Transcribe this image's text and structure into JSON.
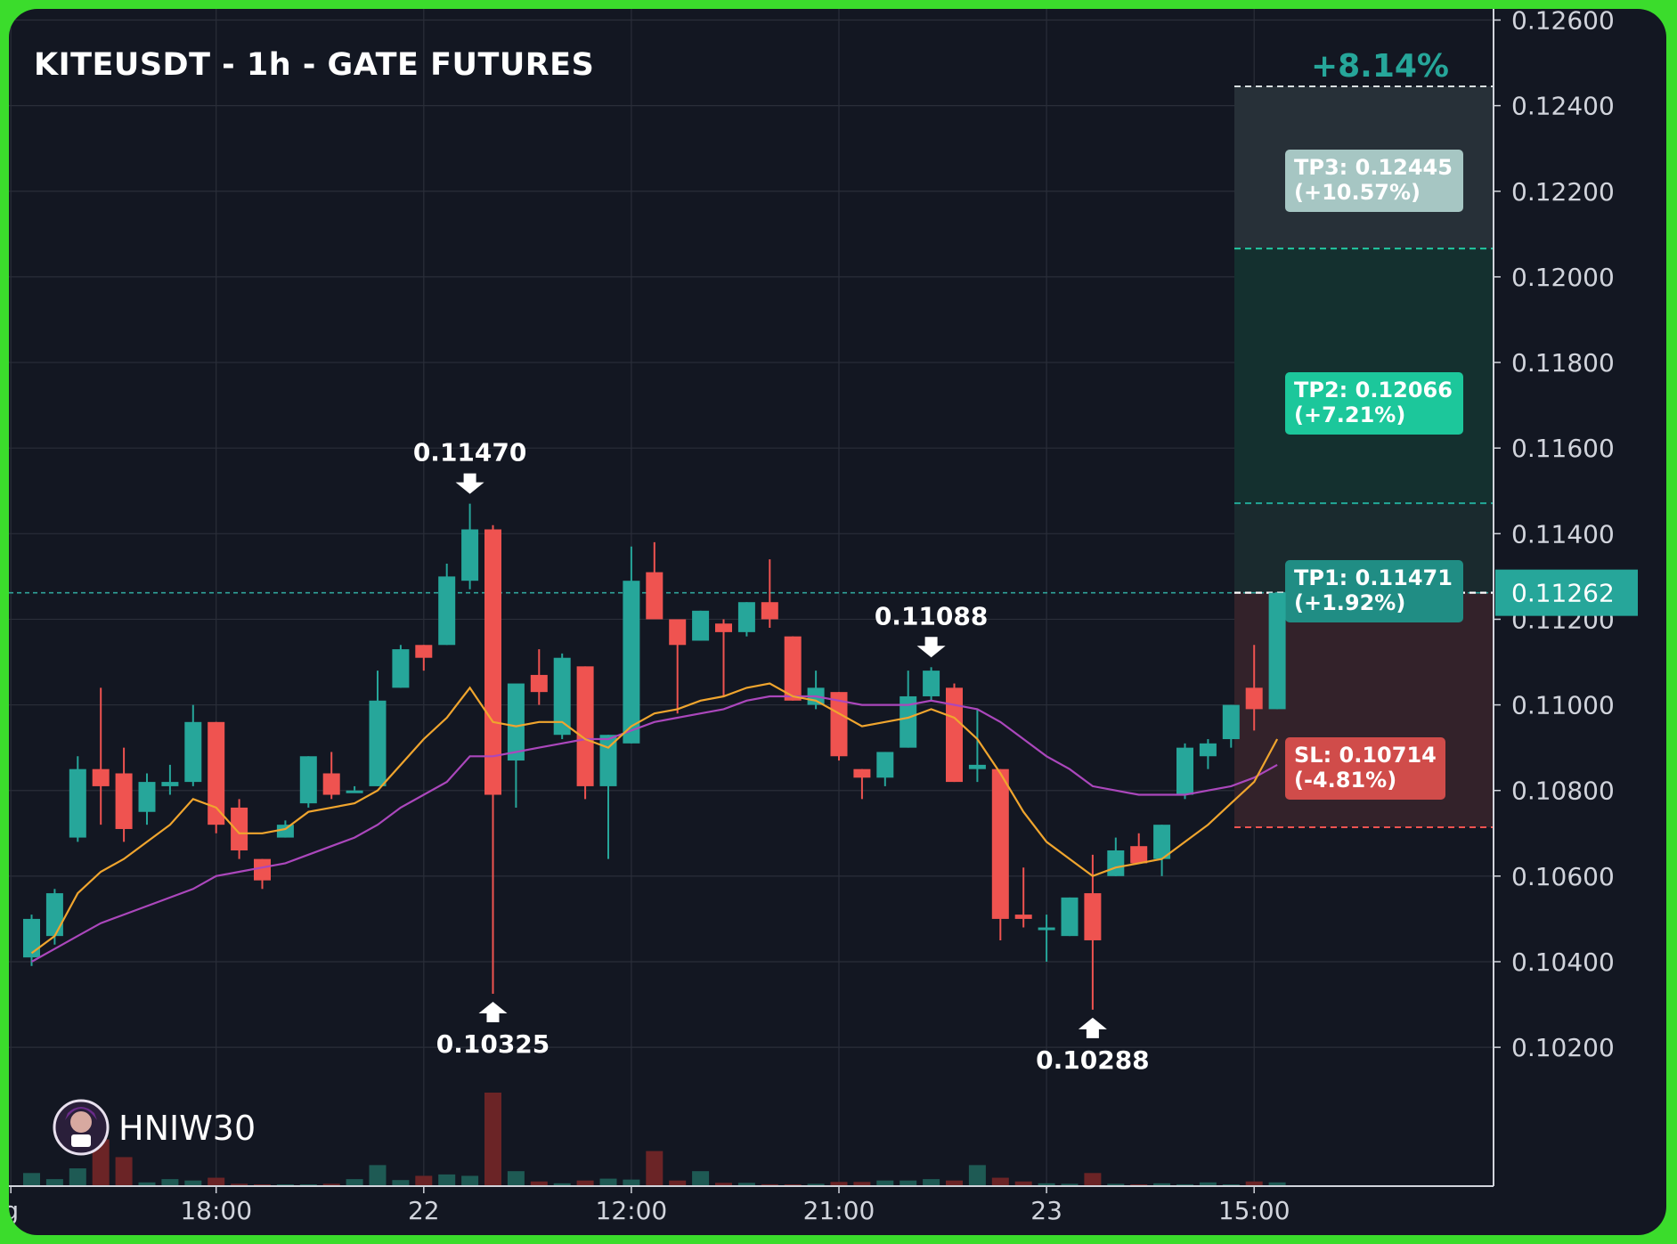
{
  "title": "KITEUSDT - 1h - GATE FUTURES",
  "brand": {
    "name": "HNIW30",
    "avatar_icon": "avatar-icon"
  },
  "colors": {
    "up": "#26a69a",
    "down": "#ef5350",
    "ema_fast": "#f0a52e",
    "ema_slow": "#ab47bc",
    "background": "#131722",
    "border": "#3bdc2c"
  },
  "chart_data": {
    "type": "candlestick",
    "title": "KITEUSDT - 1h - GATE FUTURES",
    "ylim": [
      0.1008,
      0.126
    ],
    "yticks": [
      "0.10200",
      "0.10400",
      "0.10600",
      "0.10800",
      "0.11000",
      "0.11200",
      "0.11400",
      "0.11600",
      "0.11800",
      "0.12000",
      "0.12200",
      "0.12400",
      "0.12600"
    ],
    "xticks": [
      {
        "index": -0.9,
        "label": "g"
      },
      {
        "index": 8,
        "label": "18:00"
      },
      {
        "index": 17,
        "label": "22"
      },
      {
        "index": 26,
        "label": "12:00"
      },
      {
        "index": 35,
        "label": "21:00"
      },
      {
        "index": 44,
        "label": "23"
      },
      {
        "index": 53,
        "label": "15:00"
      }
    ],
    "grid": true,
    "candles": [
      {
        "o": 0.1041,
        "h": 0.1051,
        "l": 0.1039,
        "c": 0.105,
        "v": 28
      },
      {
        "o": 0.1046,
        "h": 0.1057,
        "l": 0.1044,
        "c": 0.1056,
        "v": 15
      },
      {
        "o": 0.1069,
        "h": 0.1088,
        "l": 0.1068,
        "c": 0.1085,
        "v": 38
      },
      {
        "o": 0.1085,
        "h": 0.1104,
        "l": 0.1072,
        "c": 0.1081,
        "v": 100
      },
      {
        "o": 0.1084,
        "h": 0.109,
        "l": 0.1068,
        "c": 0.1071,
        "v": 62
      },
      {
        "o": 0.1075,
        "h": 0.1084,
        "l": 0.1072,
        "c": 0.1082,
        "v": 8
      },
      {
        "o": 0.1081,
        "h": 0.1086,
        "l": 0.1079,
        "c": 0.1082,
        "v": 15
      },
      {
        "o": 0.1082,
        "h": 0.11,
        "l": 0.1081,
        "c": 0.1096,
        "v": 12
      },
      {
        "o": 0.1096,
        "h": 0.1096,
        "l": 0.107,
        "c": 0.1072,
        "v": 18
      },
      {
        "o": 0.1076,
        "h": 0.1078,
        "l": 0.1064,
        "c": 0.1066,
        "v": 5
      },
      {
        "o": 0.1064,
        "h": 0.1064,
        "l": 0.1057,
        "c": 0.1059,
        "v": 3
      },
      {
        "o": 0.1069,
        "h": 0.1073,
        "l": 0.1069,
        "c": 0.1072,
        "v": 2
      },
      {
        "o": 0.1077,
        "h": 0.1088,
        "l": 0.1076,
        "c": 0.1088,
        "v": 3
      },
      {
        "o": 0.1084,
        "h": 0.1089,
        "l": 0.1078,
        "c": 0.1079,
        "v": 5
      },
      {
        "o": 0.108,
        "h": 0.1081,
        "l": 0.108,
        "c": 0.108,
        "v": 15
      },
      {
        "o": 0.1081,
        "h": 0.1108,
        "l": 0.1081,
        "c": 0.1101,
        "v": 45
      },
      {
        "o": 0.1104,
        "h": 0.1114,
        "l": 0.1104,
        "c": 0.1113,
        "v": 13
      },
      {
        "o": 0.1114,
        "h": 0.1114,
        "l": 0.1108,
        "c": 0.1111,
        "v": 22
      },
      {
        "o": 0.1114,
        "h": 0.1133,
        "l": 0.1114,
        "c": 0.113,
        "v": 25
      },
      {
        "o": 0.1129,
        "h": 0.1147,
        "l": 0.1127,
        "c": 0.1141,
        "v": 22
      },
      {
        "o": 0.1141,
        "h": 0.1142,
        "l": 0.10325,
        "c": 0.1079,
        "v": 200
      },
      {
        "o": 0.1087,
        "h": 0.1103,
        "l": 0.1076,
        "c": 0.1105,
        "v": 32
      },
      {
        "o": 0.1107,
        "h": 0.1113,
        "l": 0.11,
        "c": 0.1103,
        "v": 10
      },
      {
        "o": 0.1093,
        "h": 0.1112,
        "l": 0.1092,
        "c": 0.1111,
        "v": 6
      },
      {
        "o": 0.1109,
        "h": 0.1109,
        "l": 0.1078,
        "c": 0.1081,
        "v": 12
      },
      {
        "o": 0.1081,
        "h": 0.1093,
        "l": 0.1064,
        "c": 0.1093,
        "v": 16
      },
      {
        "o": 0.1091,
        "h": 0.1137,
        "l": 0.1091,
        "c": 0.1129,
        "v": 14
      },
      {
        "o": 0.1131,
        "h": 0.1138,
        "l": 0.1121,
        "c": 0.112,
        "v": 75
      },
      {
        "o": 0.112,
        "h": 0.112,
        "l": 0.1098,
        "c": 0.1114,
        "v": 12
      },
      {
        "o": 0.1115,
        "h": 0.1122,
        "l": 0.1115,
        "c": 0.1122,
        "v": 32
      },
      {
        "o": 0.1119,
        "h": 0.112,
        "l": 0.1102,
        "c": 0.1117,
        "v": 7
      },
      {
        "o": 0.1117,
        "h": 0.1124,
        "l": 0.1116,
        "c": 0.1124,
        "v": 7
      },
      {
        "o": 0.1124,
        "h": 0.1134,
        "l": 0.1118,
        "c": 0.112,
        "v": 4
      },
      {
        "o": 0.1116,
        "h": 0.1116,
        "l": 0.1101,
        "c": 0.1101,
        "v": 3
      },
      {
        "o": 0.11,
        "h": 0.1108,
        "l": 0.1099,
        "c": 0.1104,
        "v": 5
      },
      {
        "o": 0.1103,
        "h": 0.1103,
        "l": 0.1087,
        "c": 0.1088,
        "v": 9
      },
      {
        "o": 0.1085,
        "h": 0.1085,
        "l": 0.1078,
        "c": 0.1083,
        "v": 9
      },
      {
        "o": 0.1083,
        "h": 0.1089,
        "l": 0.1081,
        "c": 0.1089,
        "v": 12
      },
      {
        "o": 0.109,
        "h": 0.1108,
        "l": 0.109,
        "c": 0.1102,
        "v": 12
      },
      {
        "o": 0.1102,
        "h": 0.11088,
        "l": 0.1101,
        "c": 0.1108,
        "v": 15
      },
      {
        "o": 0.1104,
        "h": 0.1105,
        "l": 0.1082,
        "c": 0.1082,
        "v": 12
      },
      {
        "o": 0.1085,
        "h": 0.1099,
        "l": 0.1082,
        "c": 0.1086,
        "v": 45
      },
      {
        "o": 0.1085,
        "h": 0.1085,
        "l": 0.1045,
        "c": 0.105,
        "v": 18
      },
      {
        "o": 0.1051,
        "h": 0.1062,
        "l": 0.1048,
        "c": 0.105,
        "v": 10
      },
      {
        "o": 0.1048,
        "h": 0.1051,
        "l": 0.104,
        "c": 0.1048,
        "v": 6
      },
      {
        "o": 0.1046,
        "h": 0.1055,
        "l": 0.1046,
        "c": 0.1055,
        "v": 5
      },
      {
        "o": 0.1056,
        "h": 0.1065,
        "l": 0.10288,
        "c": 0.1045,
        "v": 28
      },
      {
        "o": 0.106,
        "h": 0.1069,
        "l": 0.106,
        "c": 0.1066,
        "v": 5
      },
      {
        "o": 0.1067,
        "h": 0.107,
        "l": 0.1063,
        "c": 0.1063,
        "v": 3
      },
      {
        "o": 0.1064,
        "h": 0.1072,
        "l": 0.106,
        "c": 0.1072,
        "v": 6
      },
      {
        "o": 0.1079,
        "h": 0.1091,
        "l": 0.1078,
        "c": 0.109,
        "v": 4
      },
      {
        "o": 0.1088,
        "h": 0.1092,
        "l": 0.1085,
        "c": 0.1091,
        "v": 8
      },
      {
        "o": 0.1092,
        "h": 0.11,
        "l": 0.109,
        "c": 0.11,
        "v": 3
      },
      {
        "o": 0.1104,
        "h": 0.1114,
        "l": 0.1094,
        "c": 0.1099,
        "v": 10
      },
      {
        "o": 0.1099,
        "h": 0.11262,
        "l": 0.1099,
        "c": 0.11262,
        "v": 8
      }
    ],
    "ema_fast": [
      0.1042,
      0.1046,
      0.1056,
      0.1061,
      0.1064,
      0.1068,
      0.1072,
      0.1078,
      0.1076,
      0.107,
      0.107,
      0.1071,
      0.1075,
      0.1076,
      0.1077,
      0.108,
      0.1086,
      0.1092,
      0.1097,
      0.1104,
      0.1096,
      0.1095,
      0.1096,
      0.1096,
      0.1092,
      0.109,
      0.1095,
      0.1098,
      0.1099,
      0.1101,
      0.1102,
      0.1104,
      0.1105,
      0.1102,
      0.1101,
      0.1098,
      0.1095,
      0.1096,
      0.1097,
      0.1099,
      0.1097,
      0.1092,
      0.1084,
      0.1075,
      0.1068,
      0.1064,
      0.106,
      0.1062,
      0.1063,
      0.1064,
      0.1068,
      0.1072,
      0.1077,
      0.1082,
      0.1092
    ],
    "ema_slow": [
      0.104,
      0.1043,
      0.1046,
      0.1049,
      0.1051,
      0.1053,
      0.1055,
      0.1057,
      0.106,
      0.1061,
      0.1062,
      0.1063,
      0.1065,
      0.1067,
      0.1069,
      0.1072,
      0.1076,
      0.1079,
      0.1082,
      0.1088,
      0.1088,
      0.1089,
      0.109,
      0.1091,
      0.1092,
      0.1092,
      0.1094,
      0.1096,
      0.1097,
      0.1098,
      0.1099,
      0.1101,
      0.1102,
      0.1102,
      0.1102,
      0.1101,
      0.11,
      0.11,
      0.11,
      0.1101,
      0.11,
      0.1099,
      0.1096,
      0.1092,
      0.1088,
      0.1085,
      0.1081,
      0.108,
      0.1079,
      0.1079,
      0.1079,
      0.108,
      0.1081,
      0.1083,
      0.1086
    ],
    "last_price": "0.11262",
    "entry_price": 0.11262,
    "take_profits": [
      {
        "label": "TP1: 0.11471",
        "pct": "(+1.92%)",
        "price": 0.11471,
        "box_color": "#208d84"
      },
      {
        "label": "TP2: 0.12066",
        "pct": "(+7.21%)",
        "price": 0.12066,
        "box_color": "#1cc79b"
      },
      {
        "label": "TP3: 0.12445",
        "pct": "(+10.57%)",
        "price": 0.12445,
        "box_color": "#a6c6c3"
      }
    ],
    "stop_loss": {
      "label": "SL: 0.10714",
      "pct": "(-4.81%)",
      "price": 0.10714,
      "box_color": "#d04c4a"
    },
    "target_percent": "+8.14%",
    "annotations": [
      {
        "text": "0.11470",
        "index": 19,
        "price": 0.1147,
        "dir": "down"
      },
      {
        "text": "0.10325",
        "index": 20,
        "price": 0.10325,
        "dir": "up"
      },
      {
        "text": "0.11088",
        "index": 39,
        "price": 0.11088,
        "dir": "down"
      },
      {
        "text": "0.10288",
        "index": 46,
        "price": 0.10288,
        "dir": "up"
      }
    ]
  }
}
